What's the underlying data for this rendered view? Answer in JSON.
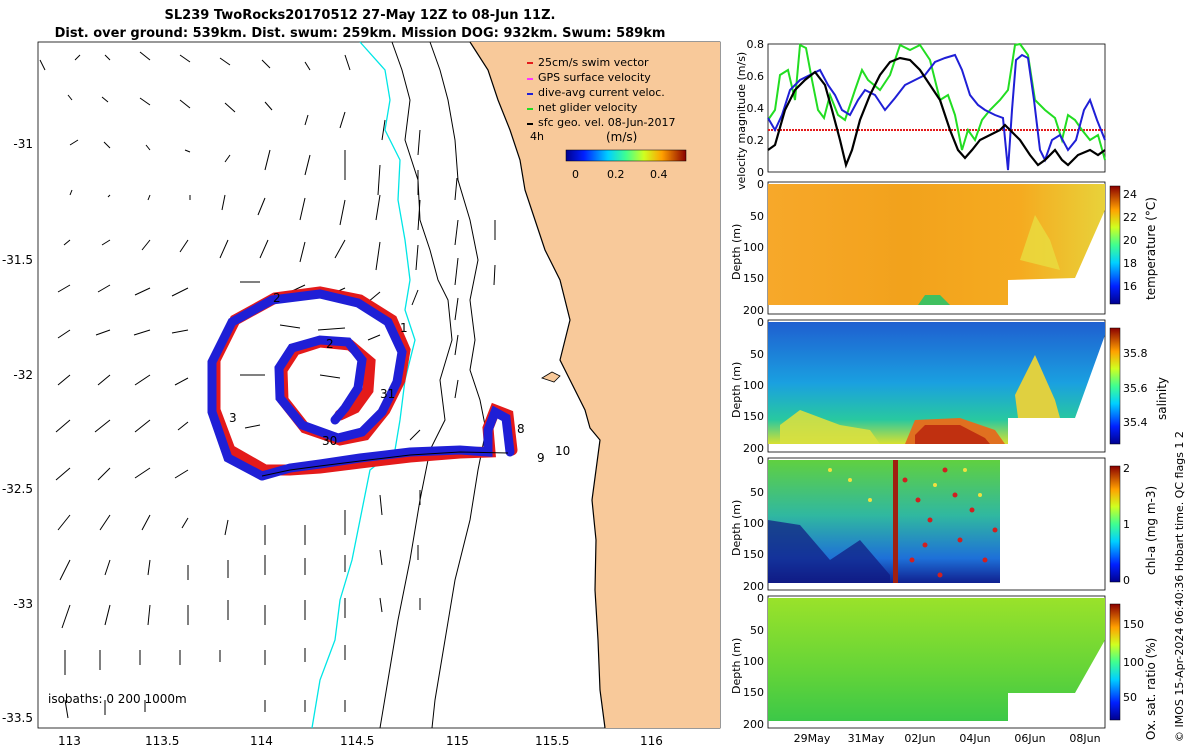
{
  "title": {
    "line1": "SL239 TwoRocks20170512 27-May 12Z to 08-Jun 11Z.",
    "line2": "Dist. over ground: 539km. Dist. swum: 259km. Mission DOG: 932km. Swum: 589km"
  },
  "map": {
    "lon_ticks": [
      "113",
      "113.5",
      "114",
      "114.5",
      "115",
      "115.5",
      "116"
    ],
    "lat_ticks": [
      "-31",
      "-31.5",
      "-32",
      "-32.5",
      "-33",
      "-33.5"
    ],
    "legend": [
      {
        "label": "25cm/s swim vector",
        "color": "#e41a1a"
      },
      {
        "label": "GPS surface velocity",
        "color": "#ff33ff"
      },
      {
        "label": "dive-avg current veloc.",
        "color": "#1f1fd6"
      },
      {
        "label": "net glider velocity",
        "color": "#22dd22"
      },
      {
        "label": "sfc geo. vel. 08-Jun-2017",
        "color": "#000000"
      }
    ],
    "colorbar_unit": "(m/s)",
    "colorbar_ticks": [
      "0",
      "0.2",
      "0.4"
    ],
    "time_step_label": "4h",
    "isobaths_label": "isobaths: 0   200  1000m",
    "day_labels": [
      {
        "t": "1"
      },
      {
        "t": "2"
      },
      {
        "t": "2"
      },
      {
        "t": "3"
      },
      {
        "t": "31"
      },
      {
        "t": "30"
      },
      {
        "t": "8"
      },
      {
        "t": "9"
      },
      {
        "t": "10"
      }
    ],
    "land_color": "#f8c99a"
  },
  "panels": {
    "velocity_ylabel": "velocity magnitude (m/s)",
    "velocity_yticks": [
      "0",
      "0.2",
      "0.4",
      "0.6",
      "0.8"
    ],
    "depth_label": "Depth (m)",
    "depth_ticks": [
      "0",
      "50",
      "100",
      "150",
      "200"
    ],
    "date_ticks": [
      "29May",
      "31May",
      "02Jun",
      "04Jun",
      "06Jun",
      "08Jun"
    ],
    "temperature": {
      "label": "temperature (°C)",
      "ticks": [
        "16",
        "18",
        "20",
        "22",
        "24"
      ]
    },
    "salinity": {
      "label": "salinity",
      "ticks": [
        "35.4",
        "35.6",
        "35.8"
      ]
    },
    "chla": {
      "label": "chl-a (mg m-3)",
      "ticks": [
        "0",
        "1",
        "2"
      ]
    },
    "oxygen": {
      "label": "Ox. sat. ratio (%)",
      "ticks": [
        "50",
        "100",
        "150"
      ]
    }
  },
  "credit": "© IMOS 15-Apr-2024 06:40:36 Hobart time. QC flags 1  2"
}
